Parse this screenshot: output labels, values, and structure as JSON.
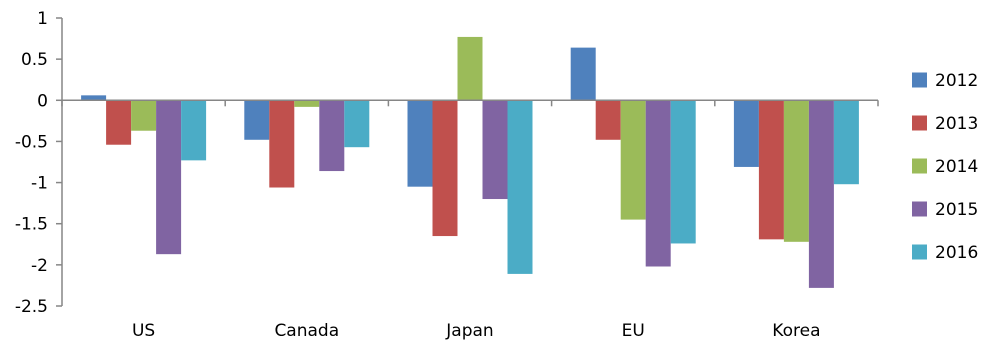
{
  "chart_data": {
    "type": "bar",
    "title": "",
    "xlabel": "",
    "ylabel": "",
    "categories": [
      "US",
      "Canada",
      "Japan",
      "EU",
      "Korea"
    ],
    "ylim": [
      -2.5,
      1
    ],
    "yticks": [
      1,
      0.5,
      0,
      -0.5,
      -1,
      -1.5,
      -2,
      -2.5
    ],
    "ytick_labels": [
      "1",
      "0.5",
      "0",
      "-0.5",
      "-1",
      "-1.5",
      "-2",
      "-2.5"
    ],
    "grid": false,
    "legend_position": "right",
    "series": [
      {
        "name": "2012",
        "color": "#4F81BD",
        "values": [
          0.06,
          -0.48,
          -1.05,
          0.64,
          -0.81
        ]
      },
      {
        "name": "2013",
        "color": "#C0504D",
        "values": [
          -0.54,
          -1.06,
          -1.65,
          -0.48,
          -1.69
        ]
      },
      {
        "name": "2014",
        "color": "#9BBB59",
        "values": [
          -0.37,
          -0.08,
          0.77,
          -1.45,
          -1.72
        ]
      },
      {
        "name": "2015",
        "color": "#8064A2",
        "values": [
          -1.87,
          -0.86,
          -1.2,
          -2.02,
          -2.28
        ]
      },
      {
        "name": "2016",
        "color": "#4BACC6",
        "values": [
          -0.73,
          -0.57,
          -2.11,
          -1.74,
          -1.02
        ]
      }
    ]
  }
}
